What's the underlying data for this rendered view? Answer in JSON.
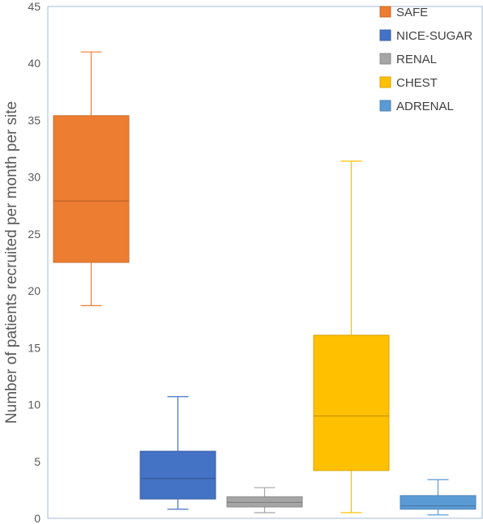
{
  "chart_data": {
    "type": "box",
    "title": "",
    "xlabel": "",
    "ylabel": "Number of patients recruited per month per site",
    "ylim": [
      0,
      45
    ],
    "yticks": [
      0,
      5,
      10,
      15,
      20,
      25,
      30,
      35,
      40,
      45
    ],
    "grid": false,
    "legend_position": "top-right",
    "series": [
      {
        "name": "SAFE",
        "color": "#ED7D31",
        "min": 18.7,
        "q1": 22.5,
        "median": 27.9,
        "q3": 35.4,
        "max": 41.0
      },
      {
        "name": "NICE-SUGAR",
        "color": "#4472C4",
        "min": 0.8,
        "q1": 1.7,
        "median": 3.5,
        "q3": 5.9,
        "max": 10.7
      },
      {
        "name": "RENAL",
        "color": "#A5A5A5",
        "min": 0.5,
        "q1": 1.0,
        "median": 1.4,
        "q3": 1.9,
        "max": 2.7
      },
      {
        "name": "CHEST",
        "color": "#FFC000",
        "min": 0.5,
        "q1": 4.2,
        "median": 9.0,
        "q3": 16.1,
        "max": 31.4
      },
      {
        "name": "ADRENAL",
        "color": "#5B9BD5",
        "min": 0.3,
        "q1": 0.8,
        "median": 1.1,
        "q3": 2.0,
        "max": 3.4
      }
    ]
  }
}
